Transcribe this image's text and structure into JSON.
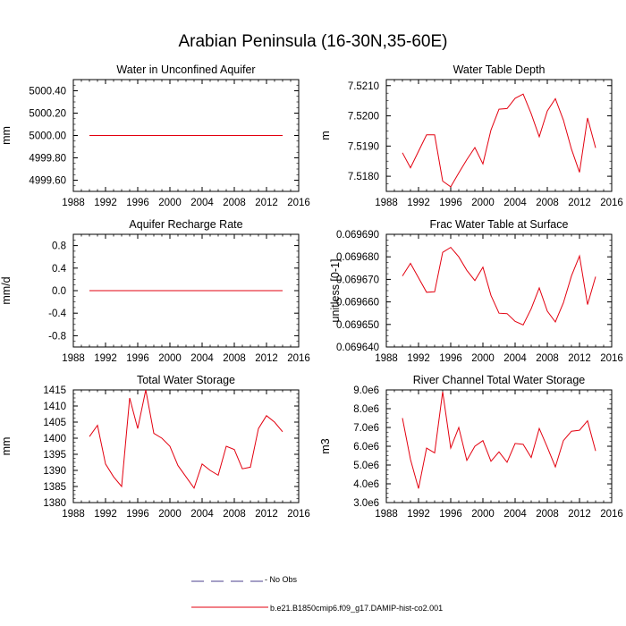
{
  "title": "Arabian Peninsula (16-30N,35-60E)",
  "colors": {
    "model_line": "#e3000f",
    "obs_line": "#4b3f8c"
  },
  "legend": [
    {
      "label": "- No Obs",
      "style": "dashed",
      "color": "#4b3f8c"
    },
    {
      "label": "b.e21.B1850cmip6.f09_g17.DAMIP-hist-co2.001",
      "style": "solid",
      "color": "#e3000f"
    }
  ],
  "chart_data": [
    {
      "type": "line",
      "title": "Water in Unconfined Aquifer",
      "ylabel": "mm",
      "xlim": [
        1988,
        2016
      ],
      "ylim": [
        4999.5,
        5000.5
      ],
      "xticks": [
        1988,
        1992,
        1996,
        2000,
        2004,
        2008,
        2012,
        2016
      ],
      "xtick_labels": [
        "1988",
        "1992",
        "1996",
        "2000",
        "2004",
        "2008",
        "2012",
        "2016"
      ],
      "yticks": [
        4999.6,
        4999.8,
        5000.0,
        5000.2,
        5000.4
      ],
      "ytick_labels": [
        "4999.60",
        "4999.80",
        "5000.00",
        "5000.20",
        "5000.40"
      ],
      "x": [
        1990,
        1991,
        1992,
        1993,
        1994,
        1995,
        1996,
        1997,
        1998,
        1999,
        2000,
        2001,
        2002,
        2003,
        2004,
        2005,
        2006,
        2007,
        2008,
        2009,
        2010,
        2011,
        2012,
        2013,
        2014
      ],
      "series": [
        {
          "values": [
            5000.0,
            5000.0,
            5000.0,
            5000.0,
            5000.0,
            5000.0,
            5000.0,
            5000.0,
            5000.0,
            5000.0,
            5000.0,
            5000.0,
            5000.0,
            5000.0,
            5000.0,
            5000.0,
            5000.0,
            5000.0,
            5000.0,
            5000.0,
            5000.0,
            5000.0,
            5000.0,
            5000.0,
            5000.0
          ]
        }
      ]
    },
    {
      "type": "line",
      "title": "Water Table Depth",
      "ylabel": "m",
      "xlim": [
        1988,
        2016
      ],
      "ylim": [
        7.5175,
        7.5212
      ],
      "xticks": [
        1988,
        1992,
        1996,
        2000,
        2004,
        2008,
        2012,
        2016
      ],
      "xtick_labels": [
        "1988",
        "1992",
        "1996",
        "2000",
        "2004",
        "2008",
        "2012",
        "2016"
      ],
      "yticks": [
        7.518,
        7.519,
        7.52,
        7.521
      ],
      "ytick_labels": [
        "7.5180",
        "7.5190",
        "7.5200",
        "7.5210"
      ],
      "x": [
        1990,
        1991,
        1992,
        1993,
        1994,
        1995,
        1996,
        1997,
        1998,
        1999,
        2000,
        2001,
        2002,
        2003,
        2004,
        2005,
        2006,
        2007,
        2008,
        2009,
        2010,
        2011,
        2012,
        2013,
        2014
      ],
      "series": [
        {
          "values": [
            7.51878,
            7.51828,
            7.51883,
            7.51937,
            7.51937,
            7.51784,
            7.51765,
            7.51811,
            7.51855,
            7.51895,
            7.51841,
            7.51953,
            7.52022,
            7.52024,
            7.52058,
            7.52072,
            7.52007,
            7.51931,
            7.52016,
            7.52057,
            7.51986,
            7.5189,
            7.51813,
            7.51993,
            7.51894
          ]
        }
      ]
    },
    {
      "type": "line",
      "title": "Aquifer Recharge Rate",
      "ylabel": "mm/d",
      "xlim": [
        1988,
        2016
      ],
      "ylim": [
        -1.0,
        1.0
      ],
      "xticks": [
        1988,
        1992,
        1996,
        2000,
        2004,
        2008,
        2012,
        2016
      ],
      "xtick_labels": [
        "1988",
        "1992",
        "1996",
        "2000",
        "2004",
        "2008",
        "2012",
        "2016"
      ],
      "yticks": [
        -0.8,
        -0.4,
        0.0,
        0.4,
        0.8
      ],
      "ytick_labels": [
        "-0.8",
        "-0.4",
        "0.0",
        "0.4",
        "0.8"
      ],
      "x": [
        1990,
        1991,
        1992,
        1993,
        1994,
        1995,
        1996,
        1997,
        1998,
        1999,
        2000,
        2001,
        2002,
        2003,
        2004,
        2005,
        2006,
        2007,
        2008,
        2009,
        2010,
        2011,
        2012,
        2013,
        2014
      ],
      "series": [
        {
          "values": [
            0.0,
            0.0,
            0.0,
            0.0,
            0.0,
            0.0,
            0.0,
            0.0,
            0.0,
            0.0,
            0.0,
            0.0,
            0.0,
            0.0,
            0.0,
            0.0,
            0.0,
            0.0,
            0.0,
            0.0,
            0.0,
            0.0,
            0.0,
            0.0,
            0.0
          ]
        }
      ]
    },
    {
      "type": "line",
      "title": "Frac Water Table at Surface",
      "ylabel": "unitless [0-1]",
      "xlim": [
        1988,
        2016
      ],
      "ylim": [
        0.06964,
        0.06969
      ],
      "xticks": [
        1988,
        1992,
        1996,
        2000,
        2004,
        2008,
        2012,
        2016
      ],
      "xtick_labels": [
        "1988",
        "1992",
        "1996",
        "2000",
        "2004",
        "2008",
        "2012",
        "2016"
      ],
      "yticks": [
        0.06964,
        0.06965,
        0.06966,
        0.06967,
        0.06968,
        0.06969
      ],
      "ytick_labels": [
        "0.069640",
        "0.069650",
        "0.069660",
        "0.069670",
        "0.069680",
        "0.069690"
      ],
      "x": [
        1990,
        1991,
        1992,
        1993,
        1994,
        1995,
        1996,
        1997,
        1998,
        1999,
        2000,
        2001,
        2002,
        2003,
        2004,
        2005,
        2006,
        2007,
        2008,
        2009,
        2010,
        2011,
        2012,
        2013,
        2014
      ],
      "series": [
        {
          "values": [
            0.0696715,
            0.0696771,
            0.0696707,
            0.0696643,
            0.0696645,
            0.069682,
            0.0696842,
            0.06968,
            0.069674,
            0.0696695,
            0.0696754,
            0.0696629,
            0.069655,
            0.0696548,
            0.0696514,
            0.0696498,
            0.069657,
            0.0696662,
            0.0696559,
            0.0696511,
            0.0696596,
            0.0696715,
            0.0696804,
            0.0696588,
            0.0696712
          ]
        }
      ]
    },
    {
      "type": "line",
      "title": "Total Water Storage",
      "ylabel": "mm",
      "xlim": [
        1988,
        2016
      ],
      "ylim": [
        1380,
        1415
      ],
      "xticks": [
        1988,
        1992,
        1996,
        2000,
        2004,
        2008,
        2012,
        2016
      ],
      "xtick_labels": [
        "1988",
        "1992",
        "1996",
        "2000",
        "2004",
        "2008",
        "2012",
        "2016"
      ],
      "yticks": [
        1380,
        1385,
        1390,
        1395,
        1400,
        1405,
        1410,
        1415
      ],
      "ytick_labels": [
        "1380",
        "1385",
        "1390",
        "1395",
        "1400",
        "1405",
        "1410",
        "1415"
      ],
      "x": [
        1990,
        1991,
        1992,
        1993,
        1994,
        1995,
        1996,
        1997,
        1998,
        1999,
        2000,
        2001,
        2002,
        2003,
        2004,
        2005,
        2006,
        2007,
        2008,
        2009,
        2010,
        2011,
        2012,
        2013,
        2014
      ],
      "series": [
        {
          "values": [
            1400.5,
            1404.0,
            1392.0,
            1388.0,
            1385.0,
            1412.5,
            1403.0,
            1415.0,
            1401.5,
            1400.0,
            1397.5,
            1391.5,
            1388.0,
            1384.5,
            1392.0,
            1390.0,
            1388.5,
            1397.5,
            1396.5,
            1390.5,
            1391.0,
            1403.0,
            1407.0,
            1405.0,
            1402.0
          ]
        }
      ]
    },
    {
      "type": "line",
      "title": "River Channel Total Water Storage",
      "ylabel": "m3",
      "xlim": [
        1988,
        2016
      ],
      "ylim": [
        3000000.0,
        9000000.0
      ],
      "xticks": [
        1988,
        1992,
        1996,
        2000,
        2004,
        2008,
        2012,
        2016
      ],
      "xtick_labels": [
        "1988",
        "1992",
        "1996",
        "2000",
        "2004",
        "2008",
        "2012",
        "2016"
      ],
      "yticks": [
        3000000.0,
        4000000.0,
        5000000.0,
        6000000.0,
        7000000.0,
        8000000.0,
        9000000.0
      ],
      "ytick_labels": [
        "3.0e6",
        "4.0e6",
        "5.0e6",
        "6.0e6",
        "7.0e6",
        "8.0e6",
        "9.0e6"
      ],
      "x": [
        1990,
        1991,
        1992,
        1993,
        1994,
        1995,
        1996,
        1997,
        1998,
        1999,
        2000,
        2001,
        2002,
        2003,
        2004,
        2005,
        2006,
        2007,
        2008,
        2009,
        2010,
        2011,
        2012,
        2013,
        2014
      ],
      "series": [
        {
          "values": [
            7500000.0,
            5300000.0,
            3750000.0,
            5900000.0,
            5650000.0,
            8900000.0,
            5900000.0,
            7000000.0,
            5250000.0,
            6000000.0,
            6300000.0,
            5200000.0,
            5700000.0,
            5150000.0,
            6150000.0,
            6100000.0,
            5400000.0,
            6950000.0,
            5950000.0,
            4900000.0,
            6300000.0,
            6800000.0,
            6850000.0,
            7350000.0,
            5750000.0
          ]
        }
      ]
    }
  ]
}
